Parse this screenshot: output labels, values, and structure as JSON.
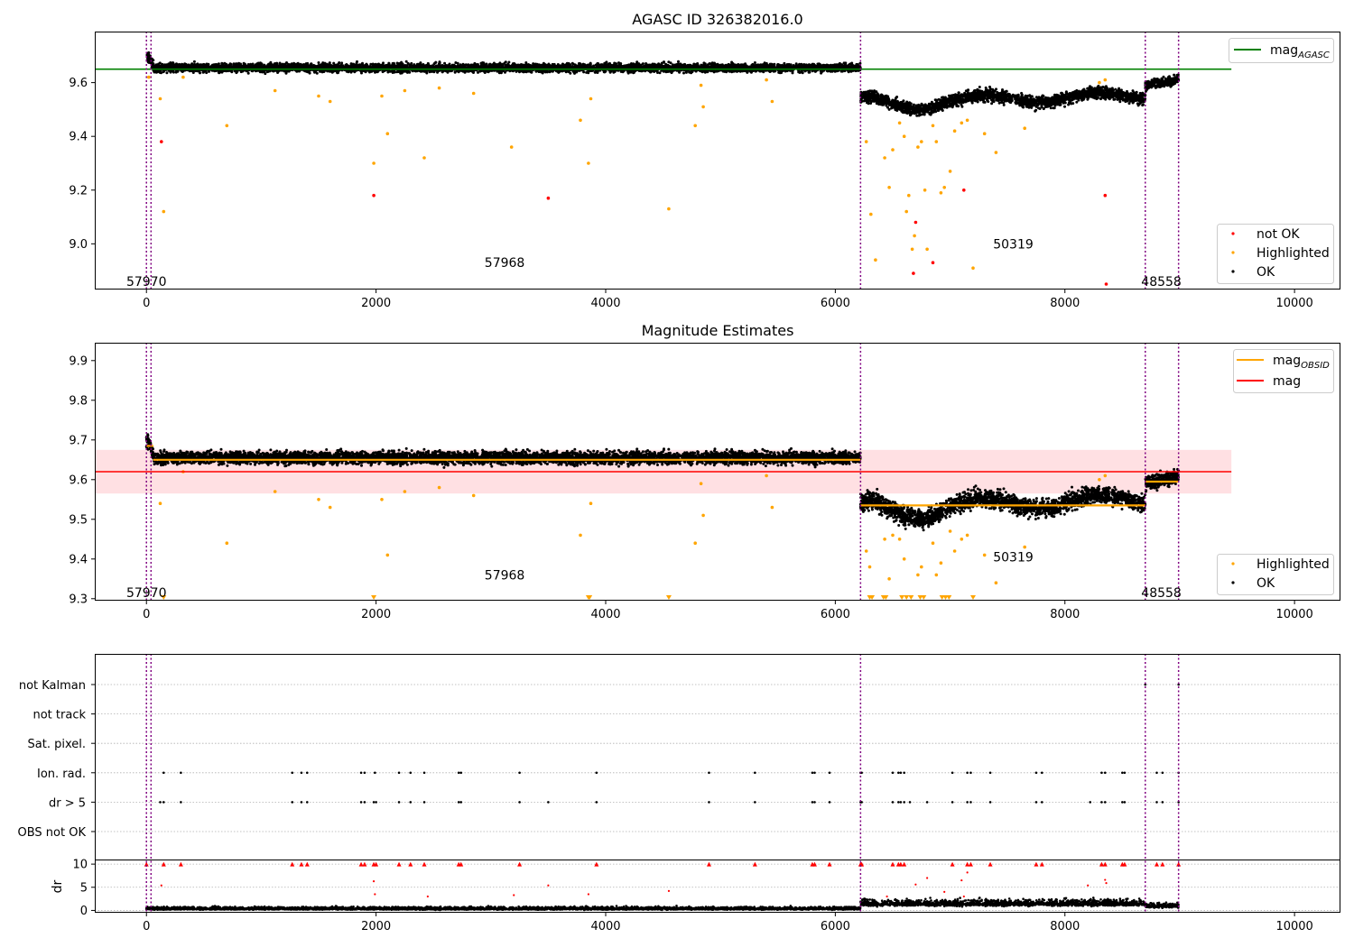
{
  "chart_data": [
    {
      "type": "scatter",
      "title": "AGASC ID 326382016.0",
      "xlim": [
        -450,
        10400
      ],
      "ylim": [
        8.83,
        9.79
      ],
      "x_ticks": [
        0,
        2000,
        4000,
        6000,
        8000,
        10000
      ],
      "y_ticks": [
        9.0,
        9.2,
        9.4,
        9.6
      ],
      "colors": {
        "ok": "#000000",
        "highlighted": "#ffa500",
        "not_ok": "#ff0000",
        "mag_agasc": "#008000",
        "obs_line": "#800080"
      },
      "mag_agasc": {
        "value": 9.65,
        "x_end": 9450
      },
      "obs_boundaries": [
        0,
        40,
        6220,
        8700,
        8990
      ],
      "obs_labels": [
        {
          "text": "57970",
          "x": 0,
          "y": 8.86
        },
        {
          "text": "57968",
          "x": 3120,
          "y": 8.93
        },
        {
          "text": "50319",
          "x": 7550,
          "y": 9.0
        },
        {
          "text": "48558",
          "x": 8840,
          "y": 8.86
        }
      ],
      "ok_segments": [
        {
          "x": [
            0,
            60
          ],
          "level": [
            9.7,
            9.67
          ],
          "noise": 0.013
        },
        {
          "x": [
            60,
            6220
          ],
          "level": [
            9.655,
            9.655
          ],
          "noise": 0.011
        },
        {
          "x": [
            6220,
            8700
          ],
          "level": [
            9.53,
            9.55
          ],
          "noise": 0.016
        },
        {
          "x": [
            8700,
            8990
          ],
          "level": [
            9.59,
            9.61
          ],
          "noise": 0.012
        }
      ],
      "highlighted": [
        [
          20,
          9.62
        ],
        [
          120,
          9.54
        ],
        [
          150,
          9.12
        ],
        [
          320,
          9.62
        ],
        [
          700,
          9.44
        ],
        [
          1120,
          9.57
        ],
        [
          1500,
          9.55
        ],
        [
          1600,
          9.53
        ],
        [
          1980,
          9.3
        ],
        [
          2050,
          9.55
        ],
        [
          2100,
          9.41
        ],
        [
          2250,
          9.57
        ],
        [
          2420,
          9.32
        ],
        [
          2550,
          9.58
        ],
        [
          2850,
          9.56
        ],
        [
          3180,
          9.36
        ],
        [
          3780,
          9.46
        ],
        [
          3850,
          9.3
        ],
        [
          3870,
          9.54
        ],
        [
          4550,
          9.13
        ],
        [
          4780,
          9.44
        ],
        [
          4830,
          9.59
        ],
        [
          4850,
          9.51
        ],
        [
          5400,
          9.61
        ],
        [
          5450,
          9.53
        ],
        [
          6270,
          9.38
        ],
        [
          6310,
          9.11
        ],
        [
          6350,
          8.94
        ],
        [
          6430,
          9.32
        ],
        [
          6470,
          9.21
        ],
        [
          6500,
          9.35
        ],
        [
          6560,
          9.45
        ],
        [
          6600,
          9.4
        ],
        [
          6620,
          9.12
        ],
        [
          6640,
          9.18
        ],
        [
          6670,
          8.98
        ],
        [
          6690,
          9.03
        ],
        [
          6720,
          9.36
        ],
        [
          6750,
          9.38
        ],
        [
          6780,
          9.2
        ],
        [
          6800,
          8.98
        ],
        [
          6850,
          9.44
        ],
        [
          6880,
          9.38
        ],
        [
          6920,
          9.19
        ],
        [
          6950,
          9.21
        ],
        [
          7000,
          9.27
        ],
        [
          7040,
          9.42
        ],
        [
          7100,
          9.45
        ],
        [
          7150,
          9.46
        ],
        [
          7200,
          8.91
        ],
        [
          7300,
          9.41
        ],
        [
          7400,
          9.34
        ],
        [
          7650,
          9.43
        ],
        [
          8300,
          9.6
        ],
        [
          8350,
          9.61
        ]
      ],
      "not_ok": [
        [
          130,
          9.38
        ],
        [
          1980,
          9.18
        ],
        [
          3500,
          9.17
        ],
        [
          6680,
          8.89
        ],
        [
          6700,
          9.08
        ],
        [
          6850,
          8.93
        ],
        [
          7120,
          9.2
        ],
        [
          8350,
          9.18
        ],
        [
          8360,
          8.85
        ]
      ],
      "legend_top": [
        {
          "label": "mag",
          "sub": "AGASC"
        }
      ],
      "legend_bottom": [
        {
          "label": "not OK"
        },
        {
          "label": "Highlighted"
        },
        {
          "label": "OK"
        }
      ]
    },
    {
      "type": "scatter",
      "title": "Magnitude Estimates",
      "xlim": [
        -450,
        10400
      ],
      "ylim": [
        9.295,
        9.945
      ],
      "x_ticks": [
        0,
        2000,
        4000,
        6000,
        8000,
        10000
      ],
      "y_ticks": [
        9.3,
        9.4,
        9.5,
        9.6,
        9.7,
        9.8,
        9.9
      ],
      "colors": {
        "ok": "#000000",
        "highlighted": "#ffa500",
        "mag": "#ff0000",
        "mag_band": "#ffe0e3",
        "mag_obsid": "#ffa500",
        "obs_line": "#800080"
      },
      "mag": {
        "value": 9.62,
        "band": [
          9.565,
          9.675
        ],
        "x_end": 9450
      },
      "mag_obsid": [
        {
          "x": [
            0,
            60
          ],
          "value": 9.685
        },
        {
          "x": [
            60,
            6220
          ],
          "value": 9.65
        },
        {
          "x": [
            6220,
            8700
          ],
          "value": 9.535
        },
        {
          "x": [
            8700,
            8990
          ],
          "value": 9.595
        }
      ],
      "obs_boundaries": [
        0,
        40,
        6220,
        8700,
        8990
      ],
      "obs_labels": [
        {
          "text": "57970",
          "x": 0,
          "y": 9.315
        },
        {
          "text": "57968",
          "x": 3120,
          "y": 9.36
        },
        {
          "text": "50319",
          "x": 7550,
          "y": 9.405
        },
        {
          "text": "48558",
          "x": 8840,
          "y": 9.315
        }
      ],
      "ok_segments": [
        {
          "x": [
            0,
            60
          ],
          "level": [
            9.7,
            9.67
          ],
          "noise": 0.013
        },
        {
          "x": [
            60,
            6220
          ],
          "level": [
            9.655,
            9.655
          ],
          "noise": 0.011
        },
        {
          "x": [
            6220,
            8700
          ],
          "level": [
            9.53,
            9.55
          ],
          "noise": 0.016
        },
        {
          "x": [
            8700,
            8990
          ],
          "level": [
            9.59,
            9.61
          ],
          "noise": 0.012
        }
      ],
      "highlighted": [
        [
          120,
          9.54
        ],
        [
          320,
          9.62
        ],
        [
          700,
          9.44
        ],
        [
          1120,
          9.57
        ],
        [
          1500,
          9.55
        ],
        [
          1600,
          9.53
        ],
        [
          2050,
          9.55
        ],
        [
          2100,
          9.41
        ],
        [
          2250,
          9.57
        ],
        [
          2550,
          9.58
        ],
        [
          2850,
          9.56
        ],
        [
          3780,
          9.46
        ],
        [
          3870,
          9.54
        ],
        [
          4780,
          9.44
        ],
        [
          4830,
          9.59
        ],
        [
          4850,
          9.51
        ],
        [
          5400,
          9.61
        ],
        [
          5450,
          9.53
        ],
        [
          6270,
          9.42
        ],
        [
          6300,
          9.38
        ],
        [
          6430,
          9.45
        ],
        [
          6470,
          9.35
        ],
        [
          6500,
          9.46
        ],
        [
          6560,
          9.45
        ],
        [
          6600,
          9.4
        ],
        [
          6720,
          9.36
        ],
        [
          6750,
          9.38
        ],
        [
          6850,
          9.44
        ],
        [
          6880,
          9.36
        ],
        [
          6920,
          9.39
        ],
        [
          7000,
          9.47
        ],
        [
          7040,
          9.42
        ],
        [
          7100,
          9.45
        ],
        [
          7150,
          9.46
        ],
        [
          7300,
          9.41
        ],
        [
          7400,
          9.34
        ],
        [
          7650,
          9.43
        ],
        [
          8300,
          9.6
        ],
        [
          8350,
          9.61
        ]
      ],
      "clipped": [
        150,
        1980,
        3850,
        3860,
        4550,
        6300,
        6320,
        6420,
        6440,
        6580,
        6620,
        6660,
        6740,
        6770,
        6930,
        6960,
        6990,
        7200
      ],
      "legend_top": [
        {
          "label": "mag",
          "sub": "OBSID"
        },
        {
          "label": "mag"
        }
      ],
      "legend_bottom": [
        {
          "label": "Highlighted"
        },
        {
          "label": "OK"
        }
      ]
    },
    {
      "type": "scatter",
      "title": "",
      "xlim": [
        -450,
        10400
      ],
      "x_ticks": [
        0,
        2000,
        4000,
        6000,
        8000,
        10000
      ],
      "flag_categories": [
        "not Kalman",
        "not track",
        "Sat. pixel.",
        "Ion. rad.",
        "dr > 5",
        "OBS not OK"
      ],
      "flags": {
        "not Kalman": [
          8700,
          8990
        ],
        "not track": [],
        "Sat. pixel.": [],
        "Ion. rad.": [
          150,
          300,
          1270,
          1350,
          1400,
          1870,
          1900,
          1990,
          2200,
          2300,
          2420,
          2720,
          2740,
          3250,
          3920,
          4900,
          5300,
          5800,
          5820,
          5950,
          6220,
          6230,
          6500,
          6550,
          6570,
          6600,
          7020,
          7150,
          7180,
          7350,
          7750,
          7800,
          8320,
          8350,
          8500,
          8520,
          8800,
          8850,
          8990
        ],
        "dr > 5": [
          120,
          150,
          300,
          1270,
          1350,
          1400,
          1870,
          1900,
          1980,
          2000,
          2200,
          2300,
          2420,
          2720,
          2740,
          3250,
          3500,
          3920,
          4900,
          5300,
          5800,
          5820,
          5950,
          6220,
          6230,
          6500,
          6550,
          6570,
          6600,
          6650,
          6800,
          7020,
          7150,
          7180,
          7350,
          7750,
          7800,
          8220,
          8320,
          8350,
          8500,
          8520,
          8800,
          8850,
          8990
        ],
        "OBS not OK": []
      },
      "dr": {
        "ylabel": "dr",
        "ylim": [
          -0.5,
          10.8
        ],
        "y_ticks": [
          0,
          5,
          10
        ],
        "capped_x": [
          0,
          150,
          300,
          1270,
          1350,
          1400,
          1870,
          1900,
          1980,
          2000,
          2200,
          2300,
          2420,
          2720,
          2740,
          3250,
          3920,
          4900,
          5300,
          5800,
          5820,
          5950,
          6220,
          6230,
          6500,
          6550,
          6570,
          6600,
          7020,
          7150,
          7180,
          7350,
          7750,
          7800,
          8320,
          8350,
          8500,
          8520,
          8800,
          8850,
          8990
        ],
        "mid_points": [
          [
            130,
            5.4
          ],
          [
            1980,
            6.3
          ],
          [
            1990,
            3.5
          ],
          [
            2450,
            3
          ],
          [
            3200,
            3.3
          ],
          [
            3500,
            5.4
          ],
          [
            3850,
            3.5
          ],
          [
            4550,
            4.2
          ],
          [
            6450,
            3
          ],
          [
            6700,
            5.6
          ],
          [
            6800,
            7
          ],
          [
            6950,
            4
          ],
          [
            7100,
            6.5
          ],
          [
            7120,
            3
          ],
          [
            7150,
            8.2
          ],
          [
            8200,
            5.4
          ],
          [
            8350,
            6.6
          ],
          [
            8360,
            5.9
          ]
        ],
        "segments": [
          {
            "x": [
              0,
              6220
            ],
            "level": 0.35,
            "noise": 0.3
          },
          {
            "x": [
              6220,
              8700
            ],
            "level": 1.4,
            "noise": 0.7
          },
          {
            "x": [
              8700,
              8990
            ],
            "level": 0.9,
            "noise": 0.5
          }
        ]
      },
      "colors": {
        "ok": "#000000",
        "red": "#ff0000",
        "grid": "#b0b0b0",
        "obs_line": "#800080"
      },
      "obs_boundaries": [
        0,
        40,
        6220,
        8700,
        8990
      ]
    }
  ]
}
